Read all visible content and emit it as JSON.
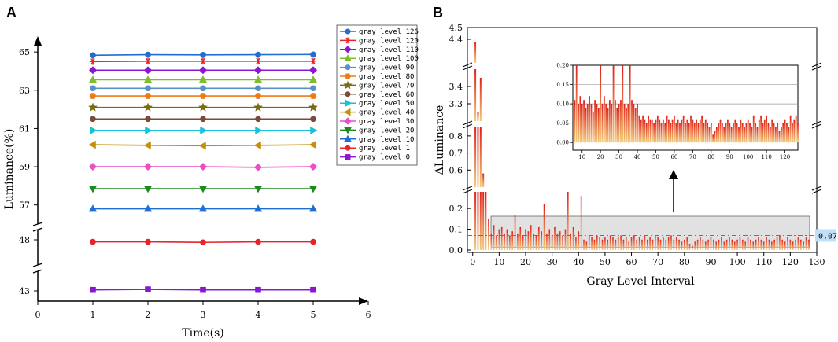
{
  "chart_data": [
    {
      "panel": "A",
      "type": "line",
      "xlabel": "Time(s)",
      "ylabel": "Luminance(%)",
      "x_ticks": [
        "0",
        "1",
        "2",
        "3",
        "4",
        "5",
        "6"
      ],
      "y_ticks": [
        "43",
        "48",
        "57",
        "59",
        "61",
        "63",
        "65"
      ],
      "x": [
        1,
        2,
        3,
        4,
        5
      ],
      "series": [
        {
          "name": "gray level 126",
          "color": "#1f6fd1",
          "marker": "circle",
          "values": [
            64.83,
            64.86,
            64.85,
            64.86,
            64.87
          ]
        },
        {
          "name": "gray level 120",
          "color": "#e8232a",
          "marker": "star6",
          "values": [
            64.5,
            64.52,
            64.52,
            64.52,
            64.52
          ]
        },
        {
          "name": "gray level 110",
          "color": "#8a17d4",
          "marker": "diamond",
          "values": [
            64.05,
            64.05,
            64.05,
            64.05,
            64.05
          ]
        },
        {
          "name": "gray level 100",
          "color": "#7cbf2a",
          "marker": "triangle",
          "values": [
            63.55,
            63.55,
            63.55,
            63.55,
            63.55
          ]
        },
        {
          "name": "gray level 90",
          "color": "#5b8fc9",
          "marker": "circle",
          "values": [
            63.1,
            63.1,
            63.1,
            63.1,
            63.1
          ]
        },
        {
          "name": "gray level 80",
          "color": "#f07a18",
          "marker": "hexagon",
          "values": [
            62.7,
            62.7,
            62.7,
            62.7,
            62.7
          ]
        },
        {
          "name": "gray level 70",
          "color": "#7a6a12",
          "marker": "star5",
          "values": [
            62.1,
            62.1,
            62.1,
            62.1,
            62.1
          ]
        },
        {
          "name": "gray level 60",
          "color": "#7a4a3a",
          "marker": "circle",
          "values": [
            61.5,
            61.5,
            61.5,
            61.5,
            61.5
          ]
        },
        {
          "name": "gray level 50",
          "color": "#18c2d6",
          "marker": "triright",
          "values": [
            60.9,
            60.9,
            60.9,
            60.9,
            60.9
          ]
        },
        {
          "name": "gray level 40",
          "color": "#c4900a",
          "marker": "trileft",
          "values": [
            60.15,
            60.12,
            60.1,
            60.12,
            60.15
          ]
        },
        {
          "name": "gray level 30",
          "color": "#ea4fc6",
          "marker": "diamond",
          "values": [
            59.0,
            59.0,
            59.0,
            58.97,
            59.0
          ]
        },
        {
          "name": "gray level 20",
          "color": "#1d8a1d",
          "marker": "tridown",
          "values": [
            57.85,
            57.85,
            57.85,
            57.85,
            57.85
          ]
        },
        {
          "name": "gray level 10",
          "color": "#1f6fd1",
          "marker": "triangle",
          "values": [
            56.8,
            56.8,
            56.8,
            56.8,
            56.8
          ]
        },
        {
          "name": "gray level 1",
          "color": "#e8232a",
          "marker": "circle",
          "values": [
            47.8,
            47.8,
            47.75,
            47.8,
            47.8
          ]
        },
        {
          "name": "gray level 0",
          "color": "#8a17d4",
          "marker": "square",
          "values": [
            43.1,
            43.15,
            43.1,
            43.1,
            43.1
          ]
        }
      ],
      "xlim": [
        0,
        6
      ],
      "y_segments": [
        [
          42,
          49
        ],
        [
          56,
          65.5
        ]
      ]
    },
    {
      "panel": "B",
      "type": "bar",
      "xlabel": "Gray Level Interval",
      "ylabel": "ΔLuminance",
      "x_ticks": [
        "0",
        "10",
        "20",
        "30",
        "40",
        "50",
        "60",
        "70",
        "80",
        "90",
        "100",
        "110",
        "120",
        "130"
      ],
      "y_ticks": [
        "0.0",
        "0.1",
        "0.2",
        "0.6",
        "0.7",
        "0.8",
        "3.3",
        "3.4",
        "4.4",
        "4.5"
      ],
      "xlim": [
        -2,
        130
      ],
      "y_segments": [
        [
          0,
          0.28
        ],
        [
          0.5,
          0.85
        ],
        [
          3.2,
          3.5
        ],
        [
          4.2,
          4.5
        ]
      ],
      "reference_line": 0.07,
      "reference_label": "0.07",
      "values": [
        4.38,
        3.25,
        3.45,
        0.58,
        0.3,
        0.15,
        0.08,
        0.12,
        0.07,
        0.1,
        0.11,
        0.08,
        0.1,
        0.07,
        0.09,
        0.17,
        0.08,
        0.11,
        0.07,
        0.1,
        0.09,
        0.12,
        0.08,
        0.07,
        0.11,
        0.09,
        0.22,
        0.08,
        0.1,
        0.07,
        0.11,
        0.08,
        0.09,
        0.07,
        0.1,
        0.38,
        0.08,
        0.11,
        0.06,
        0.09,
        0.26,
        0.05,
        0.04,
        0.07,
        0.06,
        0.05,
        0.07,
        0.06,
        0.05,
        0.06,
        0.05,
        0.07,
        0.06,
        0.05,
        0.06,
        0.07,
        0.05,
        0.06,
        0.04,
        0.06,
        0.07,
        0.05,
        0.06,
        0.05,
        0.07,
        0.05,
        0.06,
        0.05,
        0.07,
        0.06,
        0.05,
        0.06,
        0.05,
        0.06,
        0.07,
        0.05,
        0.06,
        0.05,
        0.04,
        0.05,
        0.06,
        0.03,
        0.02,
        0.04,
        0.05,
        0.06,
        0.05,
        0.04,
        0.05,
        0.06,
        0.05,
        0.04,
        0.05,
        0.06,
        0.04,
        0.05,
        0.06,
        0.05,
        0.04,
        0.05,
        0.06,
        0.05,
        0.04,
        0.06,
        0.05,
        0.04,
        0.05,
        0.06,
        0.05,
        0.04,
        0.06,
        0.05,
        0.04,
        0.05,
        0.06,
        0.07,
        0.05,
        0.04,
        0.06,
        0.05,
        0.04,
        0.05,
        0.06,
        0.05,
        0.04,
        0.06,
        0.05
      ],
      "inset": {
        "xlim": [
          5,
          127
        ],
        "ylim": [
          -0.02,
          0.2
        ],
        "x_ticks": [
          "10",
          "20",
          "30",
          "40",
          "50",
          "60",
          "70",
          "80",
          "90",
          "100",
          "110",
          "120"
        ],
        "y_ticks": [
          "0.00",
          "0.05",
          "0.10",
          "0.15",
          "0.20"
        ],
        "values": [
          0.11,
          0.2,
          0.1,
          0.12,
          0.1,
          0.11,
          0.09,
          0.1,
          0.12,
          0.1,
          0.08,
          0.11,
          0.1,
          0.09,
          0.2,
          0.1,
          0.12,
          0.1,
          0.09,
          0.11,
          0.1,
          0.2,
          0.11,
          0.09,
          0.1,
          0.11,
          0.2,
          0.1,
          0.09,
          0.1,
          0.2,
          0.11,
          0.1,
          0.09,
          0.1,
          0.07,
          0.06,
          0.07,
          0.06,
          0.05,
          0.07,
          0.06,
          0.06,
          0.05,
          0.06,
          0.07,
          0.06,
          0.05,
          0.06,
          0.05,
          0.07,
          0.06,
          0.05,
          0.06,
          0.07,
          0.05,
          0.06,
          0.05,
          0.06,
          0.07,
          0.05,
          0.06,
          0.05,
          0.07,
          0.06,
          0.05,
          0.06,
          0.05,
          0.06,
          0.07,
          0.05,
          0.06,
          0.05,
          0.04,
          0.05,
          0.02,
          0.03,
          0.04,
          0.05,
          0.06,
          0.05,
          0.04,
          0.05,
          0.06,
          0.05,
          0.04,
          0.05,
          0.06,
          0.05,
          0.04,
          0.06,
          0.05,
          0.04,
          0.05,
          0.06,
          0.05,
          0.04,
          0.07,
          0.05,
          0.04,
          0.06,
          0.07,
          0.05,
          0.06,
          0.07,
          0.05,
          0.04,
          0.06,
          0.05,
          0.04,
          0.05,
          0.03,
          0.04,
          0.05,
          0.06,
          0.05,
          0.04,
          0.07,
          0.05,
          0.06,
          0.07,
          0.05
        ]
      }
    }
  ],
  "labels": {
    "panel_a": "A",
    "panel_b": "B"
  }
}
